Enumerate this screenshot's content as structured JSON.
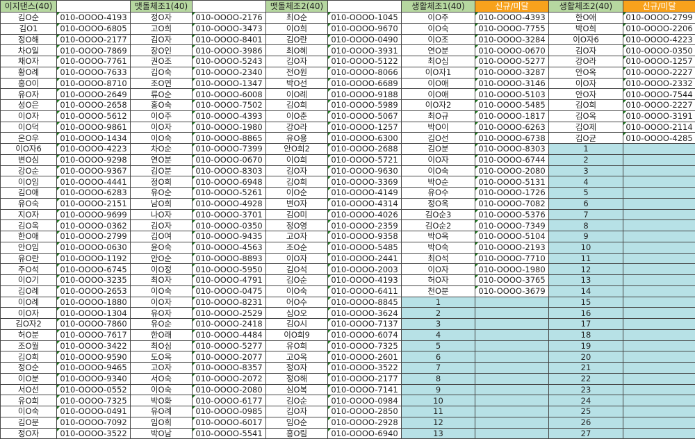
{
  "colors": {
    "green_header": "#b6d7a0",
    "orange_header": "#f8a21c",
    "filler": "#b7e1e6"
  },
  "headers": [
    {
      "label": "이지댄스(40)",
      "color": "green"
    },
    {
      "label": "",
      "color": "white"
    },
    {
      "label": "맷돌체조1(40)",
      "color": "green"
    },
    {
      "label": "",
      "color": "white"
    },
    {
      "label": "맷돌체조2(40)",
      "color": "green"
    },
    {
      "label": "",
      "color": "white"
    },
    {
      "label": "생활체조1(40)",
      "color": "green"
    },
    {
      "label": "신규/미달",
      "color": "orange"
    },
    {
      "label": "생활체조2(40)",
      "color": "green"
    },
    {
      "label": "신규/미달",
      "color": "orange"
    }
  ],
  "groups": [
    {
      "entries": [
        [
          "김O순",
          "010-OOOO-4193"
        ],
        [
          "김O1",
          "010-OOOO-6805"
        ],
        [
          "정O해",
          "010-OOOO-2177"
        ],
        [
          "차O일",
          "010-OOOO-7869"
        ],
        [
          "채O자",
          "010-OOOO-7761"
        ],
        [
          "황O례",
          "010-OOOO-7633"
        ],
        [
          "홍O이",
          "010-OOOO-8710"
        ],
        [
          "유O자",
          "010-OOOO-2649"
        ],
        [
          "성O은",
          "010-OOOO-2658"
        ],
        [
          "이O자",
          "010-OOOO-5612"
        ],
        [
          "이O덕",
          "010-OOOO-9861"
        ],
        [
          "온O우",
          "010-OOOO-1434"
        ],
        [
          "이O자6",
          "010-OOOO-4223"
        ],
        [
          "변O심",
          "010-OOOO-9298"
        ],
        [
          "강O순",
          "010-OOOO-9367"
        ],
        [
          "이O임",
          "010-OOOO-4441"
        ],
        [
          "김O애",
          "010-OOOO-6283"
        ],
        [
          "유O숙",
          "010-OOOO-2151"
        ],
        [
          "지O자",
          "010-OOOO-9699"
        ],
        [
          "김O옥",
          "010-OOOO-0362"
        ],
        [
          "한O애",
          "010-OOOO-2799"
        ],
        [
          "안O임",
          "010-OOOO-0630"
        ],
        [
          "유O란",
          "010-OOOO-1192"
        ],
        [
          "주O석",
          "010-OOOO-6745"
        ],
        [
          "이O기",
          "010-OOOO-3235"
        ],
        [
          "김O례",
          "010-OOOO-2653"
        ],
        [
          "이O례",
          "010-OOOO-1880"
        ],
        [
          "이O자",
          "010-OOOO-1304"
        ],
        [
          "김O자2",
          "010-OOOO-7860"
        ],
        [
          "허O분",
          "010-OOOO-7617"
        ],
        [
          "조O월",
          "010-OOOO-3422"
        ],
        [
          "김O희",
          "010-OOOO-9590"
        ],
        [
          "정O순",
          "010-OOOO-9465"
        ],
        [
          "이O분",
          "010-OOOO-9340"
        ],
        [
          "서O선",
          "010-OOOO-0552"
        ],
        [
          "유O희",
          "010-OOOO-7325"
        ],
        [
          "이O숙",
          "010-OOOO-0491"
        ],
        [
          "김O분",
          "010-OOOO-7092"
        ],
        [
          "정O자",
          "010-OOOO-3522"
        ]
      ],
      "fill_numbers": []
    },
    {
      "entries": [
        [
          "정O자",
          "010-OOOO-2176"
        ],
        [
          "고O희",
          "010-OOOO-3473"
        ],
        [
          "김O자",
          "010-OOOO-8401"
        ],
        [
          "장O인",
          "010-OOOO-3986"
        ],
        [
          "권O조",
          "010-OOOO-5243"
        ],
        [
          "김O숙",
          "010-OOOO-2340"
        ],
        [
          "조O연",
          "010-OOOO-1347"
        ],
        [
          "류O순",
          "010-OOOO-6008"
        ],
        [
          "홍O숙",
          "010-OOOO-7502"
        ],
        [
          "이O주",
          "010-OOOO-4393"
        ],
        [
          "이O자",
          "010-OOOO-1980"
        ],
        [
          "이O숙",
          "010-OOOO-8865"
        ],
        [
          "차O순",
          "010-OOOO-7399"
        ],
        [
          "연O분",
          "010-OOOO-0670"
        ],
        [
          "김O분",
          "010-OOOO-8303"
        ],
        [
          "정O희",
          "010-OOOO-6948"
        ],
        [
          "유O순",
          "010-OOOO-5261"
        ],
        [
          "남O희",
          "010-OOOO-4928"
        ],
        [
          "나O자",
          "010-OOOO-3701"
        ],
        [
          "김O자",
          "010-OOOO-0350"
        ],
        [
          "김O여",
          "010-OOOO-9435"
        ],
        [
          "윤O숙",
          "010-OOOO-4563"
        ],
        [
          "안O순",
          "010-OOOO-8893"
        ],
        [
          "이O정",
          "010-OOOO-5950"
        ],
        [
          "최O자",
          "010-OOOO-4791"
        ],
        [
          "이O숙",
          "010-OOOO-0475"
        ],
        [
          "이O자",
          "010-OOOO-8231"
        ],
        [
          "유O자",
          "010-OOOO-2529"
        ],
        [
          "유O순",
          "010-OOOO-2418"
        ],
        [
          "한O래",
          "010-OOOO-4484"
        ],
        [
          "최O심",
          "010-OOOO-5277"
        ],
        [
          "도O옥",
          "010-OOOO-2077"
        ],
        [
          "고O자",
          "010-OOOO-8357"
        ],
        [
          "서O숙",
          "010-OOOO-2072"
        ],
        [
          "이O숙",
          "010-OOOO-2080"
        ],
        [
          "박O화",
          "010-OOOO-6177"
        ],
        [
          "유O례",
          "010-OOOO-0985"
        ],
        [
          "임O희",
          "010-OOOO-6017"
        ],
        [
          "박O남",
          "010-OOOO-5541"
        ]
      ],
      "fill_numbers": []
    },
    {
      "entries": [
        [
          "최O순",
          "010-OOOO-1045"
        ],
        [
          "이O희",
          "010-OOOO-9670"
        ],
        [
          "김O란",
          "010-OOOO-0490"
        ],
        [
          "최O혜",
          "010-OOOO-3931"
        ],
        [
          "김O자",
          "010-OOOO-5122"
        ],
        [
          "전O원",
          "010-OOOO-8066"
        ],
        [
          "박O선",
          "010-OOOO-6689"
        ],
        [
          "이O례",
          "010-OOOO-9188"
        ],
        [
          "김O희",
          "010-OOOO-5989"
        ],
        [
          "이O춘",
          "010-OOOO-5067"
        ],
        [
          "강O라",
          "010-OOOO-1257"
        ],
        [
          "유O용",
          "010-OOOO-6300"
        ],
        [
          "안O희2",
          "010-OOOO-2688"
        ],
        [
          "이O희",
          "010-OOOO-5721"
        ],
        [
          "김O자",
          "010-OOOO-9630"
        ],
        [
          "김O희",
          "010-OOOO-3369"
        ],
        [
          "이O순",
          "010-OOOO-4149"
        ],
        [
          "변O자",
          "010-OOOO-4314"
        ],
        [
          "김O미",
          "010-OOOO-4026"
        ],
        [
          "정O영",
          "010-OOOO-2359"
        ],
        [
          "고O자",
          "010-OOOO-9358"
        ],
        [
          "조O순",
          "010-OOOO-5485"
        ],
        [
          "이O자",
          "010-OOOO-2441"
        ],
        [
          "김O석",
          "010-OOOO-2003"
        ],
        [
          "김O순",
          "010-OOOO-4193"
        ],
        [
          "이O숙",
          "010-OOOO-6411"
        ],
        [
          "어O수",
          "010-OOOO-8845"
        ],
        [
          "심O오",
          "010-OOOO-3624"
        ],
        [
          "김O시",
          "010-OOOO-7137"
        ],
        [
          "이O희9",
          "010-OOOO-6074"
        ],
        [
          "유O희",
          "010-OOOO-7325"
        ],
        [
          "고O옥",
          "010-OOOO-2601"
        ],
        [
          "정O자",
          "010-OOOO-3522"
        ],
        [
          "정O해",
          "010-OOOO-2177"
        ],
        [
          "심O복",
          "010-OOOO-7141"
        ],
        [
          "김O순",
          "010-OOOO-0984"
        ],
        [
          "김O자",
          "010-OOOO-2850"
        ],
        [
          "임O순",
          "010-OOOO-2928"
        ],
        [
          "홍O림",
          "010-OOOO-6940"
        ]
      ],
      "fill_numbers": []
    },
    {
      "entries": [
        [
          "이O주",
          "010-OOOO-4393"
        ],
        [
          "이O숙",
          "010-OOOO-7755"
        ],
        [
          "이O조",
          "010-OOOO-3284"
        ],
        [
          "연O분",
          "010-OOOO-0670"
        ],
        [
          "최O심",
          "010-OOOO-5277"
        ],
        [
          "이O자1",
          "010-OOOO-3287"
        ],
        [
          "이O애",
          "010-OOOO-3146"
        ],
        [
          "이O애",
          "010-OOOO-5103"
        ],
        [
          "이O자2",
          "010-OOOO-5485"
        ],
        [
          "최O규",
          "010-OOOO-1817"
        ],
        [
          "박O이",
          "010-OOOO-6263"
        ],
        [
          "김O선",
          "010-OOOO-6738"
        ],
        [
          "김O분",
          "010-OOOO-8303"
        ],
        [
          "이O자",
          "010-OOOO-6744"
        ],
        [
          "이O숙",
          "010-OOOO-2080"
        ],
        [
          "박O순",
          "010-OOOO-5131"
        ],
        [
          "유O수",
          "010-OOOO-1726"
        ],
        [
          "정O옥",
          "010-OOOO-7082"
        ],
        [
          "김O순3",
          "010-OOOO-5376"
        ],
        [
          "김O순2",
          "010-OOOO-7349"
        ],
        [
          "박O옥",
          "010-OOOO-5104"
        ],
        [
          "박O숙",
          "010-OOOO-2193"
        ],
        [
          "최O석",
          "010-OOOO-7710"
        ],
        [
          "이O자",
          "010-OOOO-1980"
        ],
        [
          "허O자",
          "010-OOOO-3765"
        ],
        [
          "천O분",
          "010-OOOO-3679"
        ]
      ],
      "fill_numbers": [
        "1",
        "2",
        "3",
        "4",
        "5",
        "6",
        "7",
        "8",
        "9",
        "10",
        "11",
        "12",
        "13"
      ]
    },
    {
      "entries": [
        [
          "한O애",
          "010-OOOO-2799"
        ],
        [
          "박O희",
          "010-OOOO-2206"
        ],
        [
          "이O자6",
          "010-OOOO-4223"
        ],
        [
          "김O자",
          "010-OOOO-0350"
        ],
        [
          "강O라",
          "010-OOOO-1257"
        ],
        [
          "안O옥",
          "010-OOOO-2227"
        ],
        [
          "이O자",
          "010-OOOO-2332"
        ],
        [
          "안O자",
          "010-OOOO-7544"
        ],
        [
          "김O희",
          "010-OOOO-2227"
        ],
        [
          "김O옥",
          "010-OOOO-3191"
        ],
        [
          "김O제",
          "010-OOOO-2114"
        ],
        [
          "김O균",
          "010-OOOO-4285"
        ]
      ],
      "fill_numbers": [
        "1",
        "2",
        "3",
        "4",
        "5",
        "6",
        "7",
        "8",
        "9",
        "10",
        "11",
        "12",
        "13",
        "14",
        "15",
        "16",
        "17",
        "18",
        "19",
        "20",
        "21",
        "22",
        "23",
        "24",
        "25",
        "26",
        "27"
      ]
    }
  ]
}
